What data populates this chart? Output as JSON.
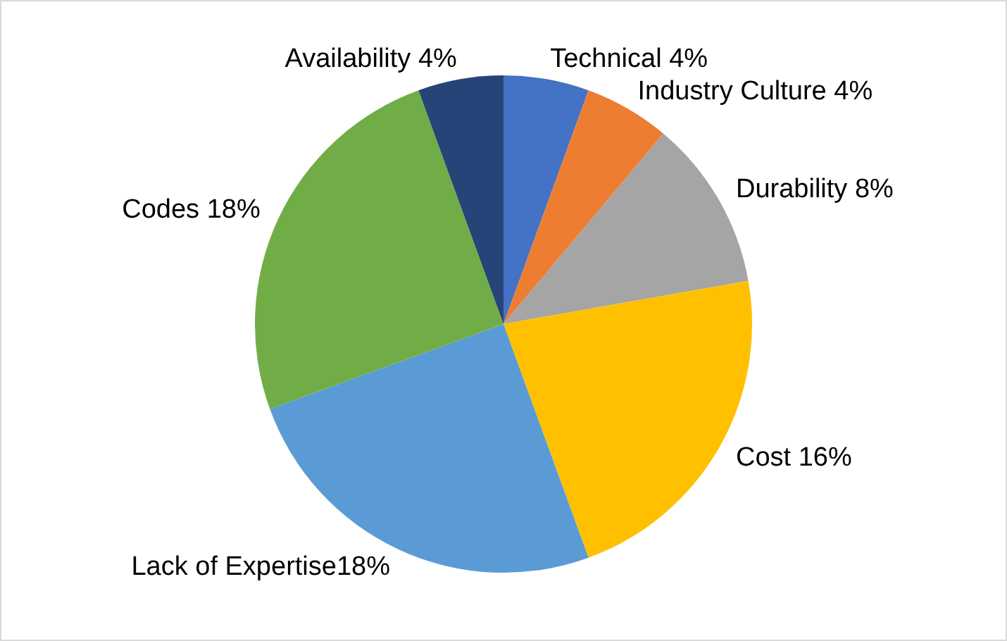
{
  "chart_data": {
    "type": "pie",
    "categories": [
      "Technical 4%",
      "Industry Culture 4%",
      "Durability 8%",
      "Cost 16%",
      "Lack of Expertise18%",
      "Codes 18%",
      "Availability 4%"
    ],
    "values": [
      4,
      4,
      8,
      16,
      18,
      18,
      4
    ],
    "colors": [
      "#4472c4",
      "#ed7d31",
      "#a5a5a5",
      "#ffc000",
      "#5b9bd5",
      "#70ad47",
      "#264478"
    ],
    "legend": false
  }
}
